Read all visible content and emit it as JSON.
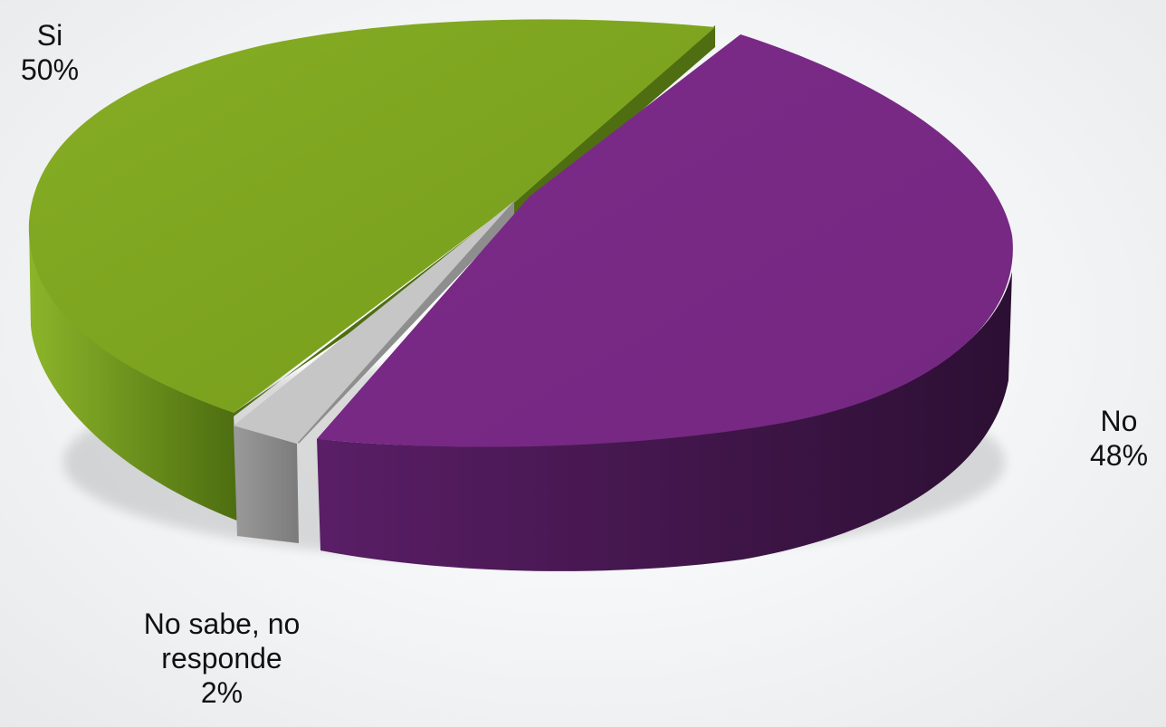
{
  "chart_data": {
    "type": "pie",
    "title": "",
    "style": "3d-exploded",
    "slices": [
      {
        "name": "Si",
        "percent_label": "50%",
        "value": 50,
        "color": "#7ea51f"
      },
      {
        "name": "No",
        "percent_label": "48%",
        "value": 48,
        "color": "#7a2a86"
      },
      {
        "name_lines": [
          "No sabe, no",
          "responde"
        ],
        "name": "No sabe, no responde",
        "percent_label": "2%",
        "value": 2,
        "color": "#bdbdbd"
      }
    ],
    "legend": "none"
  }
}
